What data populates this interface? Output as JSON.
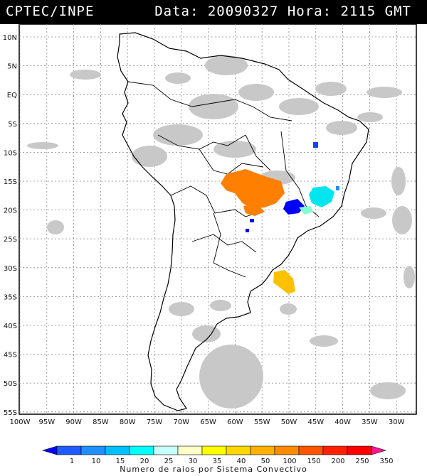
{
  "header": {
    "source": "CPTEC/INPE",
    "date_label": "Data:",
    "date_value": "20090327",
    "time_label": "Hora:",
    "time_value": "2115 GMT"
  },
  "map": {
    "lat_ticks": [
      "10N",
      "5N",
      "EQ",
      "5S",
      "10S",
      "15S",
      "20S",
      "25S",
      "30S",
      "35S",
      "40S",
      "45S",
      "50S",
      "55S"
    ],
    "lon_ticks": [
      "100W",
      "95W",
      "90W",
      "85W",
      "80W",
      "75W",
      "70W",
      "65W",
      "60W",
      "55W",
      "50W",
      "45W",
      "40W",
      "35W",
      "30W"
    ],
    "land_color": "#ffffff",
    "outline_color": "#000000",
    "cloud_color": "#c8c8c8"
  },
  "colorbar": {
    "labels": [
      "1",
      "10",
      "15",
      "20",
      "25",
      "30",
      "35",
      "40",
      "50",
      "100",
      "150",
      "200",
      "250",
      "350"
    ],
    "colors": [
      "#0000ff",
      "#1f5cff",
      "#1e90ff",
      "#00bfff",
      "#00ffff",
      "#c8ffff",
      "#ffffc8",
      "#ffff00",
      "#ffd700",
      "#ffb000",
      "#ff8c00",
      "#ff5500",
      "#ff2000",
      "#ff0000",
      "#ff1493"
    ],
    "title": "Numero de raios por Sistema Convectivo"
  }
}
